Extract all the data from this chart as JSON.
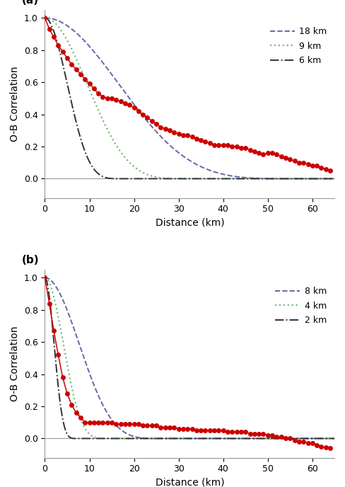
{
  "panel_a": {
    "label": "(a)",
    "ylim": [
      -0.12,
      1.05
    ],
    "xlim": [
      0,
      65
    ],
    "xlabel": "Distance (km)",
    "ylabel": "O-B Correlation",
    "yticks": [
      0.0,
      0.2,
      0.4,
      0.6,
      0.8,
      1.0
    ],
    "xticks": [
      0,
      10,
      20,
      30,
      40,
      50,
      60
    ],
    "legend_labels": [
      "18 km",
      "9 km",
      "6 km"
    ],
    "obs_x": [
      0,
      1,
      2,
      3,
      4,
      5,
      6,
      7,
      8,
      9,
      10,
      11,
      12,
      13,
      14,
      15,
      16,
      17,
      18,
      19,
      20,
      21,
      22,
      23,
      24,
      25,
      26,
      27,
      28,
      29,
      30,
      31,
      32,
      33,
      34,
      35,
      36,
      37,
      38,
      39,
      40,
      41,
      42,
      43,
      44,
      45,
      46,
      47,
      48,
      49,
      50,
      51,
      52,
      53,
      54,
      55,
      56,
      57,
      58,
      59,
      60,
      61,
      62,
      63,
      64
    ],
    "obs_y": [
      1.0,
      0.93,
      0.88,
      0.83,
      0.79,
      0.75,
      0.71,
      0.68,
      0.65,
      0.62,
      0.59,
      0.56,
      0.53,
      0.51,
      0.5,
      0.5,
      0.49,
      0.48,
      0.47,
      0.46,
      0.44,
      0.42,
      0.4,
      0.38,
      0.36,
      0.34,
      0.32,
      0.31,
      0.3,
      0.29,
      0.28,
      0.27,
      0.27,
      0.26,
      0.25,
      0.24,
      0.23,
      0.22,
      0.21,
      0.21,
      0.21,
      0.21,
      0.2,
      0.2,
      0.19,
      0.19,
      0.18,
      0.17,
      0.16,
      0.15,
      0.16,
      0.16,
      0.15,
      0.14,
      0.13,
      0.12,
      0.11,
      0.1,
      0.1,
      0.09,
      0.08,
      0.08,
      0.07,
      0.06,
      0.05
    ],
    "L_large": 18,
    "L_mid": 9,
    "L_small": 6,
    "sigma_large": 28,
    "sigma_mid": 16,
    "sigma_small": 8.5
  },
  "panel_b": {
    "label": "(b)",
    "ylim": [
      -0.12,
      1.05
    ],
    "xlim": [
      0,
      65
    ],
    "xlabel": "Distance (km)",
    "ylabel": "O-B Correlation",
    "yticks": [
      0.0,
      0.2,
      0.4,
      0.6,
      0.8,
      1.0
    ],
    "xticks": [
      0,
      10,
      20,
      30,
      40,
      50,
      60
    ],
    "legend_labels": [
      "8 km",
      "4 km",
      "2 km"
    ],
    "obs_x": [
      0,
      1,
      2,
      3,
      4,
      5,
      6,
      7,
      8,
      9,
      10,
      11,
      12,
      13,
      14,
      15,
      16,
      17,
      18,
      19,
      20,
      21,
      22,
      23,
      24,
      25,
      26,
      27,
      28,
      29,
      30,
      31,
      32,
      33,
      34,
      35,
      36,
      37,
      38,
      39,
      40,
      41,
      42,
      43,
      44,
      45,
      46,
      47,
      48,
      49,
      50,
      51,
      52,
      53,
      54,
      55,
      56,
      57,
      58,
      59,
      60,
      61,
      62,
      63,
      64
    ],
    "obs_y": [
      1.0,
      0.84,
      0.67,
      0.52,
      0.38,
      0.28,
      0.21,
      0.16,
      0.13,
      0.1,
      0.1,
      0.1,
      0.1,
      0.1,
      0.1,
      0.1,
      0.09,
      0.09,
      0.09,
      0.09,
      0.09,
      0.09,
      0.08,
      0.08,
      0.08,
      0.08,
      0.07,
      0.07,
      0.07,
      0.07,
      0.06,
      0.06,
      0.06,
      0.06,
      0.05,
      0.05,
      0.05,
      0.05,
      0.05,
      0.05,
      0.05,
      0.04,
      0.04,
      0.04,
      0.04,
      0.04,
      0.03,
      0.03,
      0.03,
      0.03,
      0.02,
      0.02,
      0.01,
      0.01,
      0.0,
      0.0,
      -0.01,
      -0.02,
      -0.02,
      -0.03,
      -0.03,
      -0.04,
      -0.05,
      -0.055,
      -0.06
    ],
    "L_large": 8,
    "L_mid": 4,
    "L_small": 2,
    "sigma_large": 13,
    "sigma_mid": 7,
    "sigma_small": 3.5
  },
  "colors": {
    "obs_line": "#CC0000",
    "obs_marker": "#CC0000",
    "blue_dash": "#6666AA",
    "green_dot": "#77BB77",
    "black_dashdot": "#333333"
  },
  "figsize": [
    4.88,
    6.88
  ],
  "dpi": 100
}
